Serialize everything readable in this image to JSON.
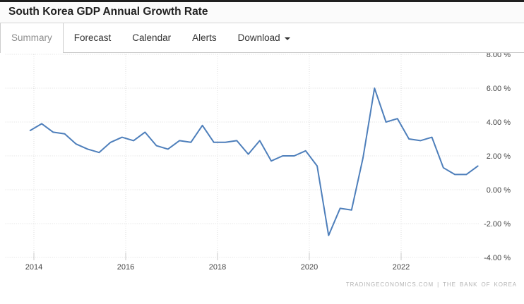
{
  "header": {
    "title": "South Korea GDP Annual Growth Rate"
  },
  "tabs": [
    {
      "label": "Summary",
      "active": true
    },
    {
      "label": "Forecast",
      "active": false
    },
    {
      "label": "Calendar",
      "active": false
    },
    {
      "label": "Alerts",
      "active": false
    },
    {
      "label": "Download",
      "active": false,
      "has_caret": true
    }
  ],
  "footer": {
    "attribution": "TRADINGECONOMICS.COM  |  THE BANK OF KOREA"
  },
  "colors": {
    "line": "#4e7fbb",
    "gridline": "#dcdcdc",
    "tick": "#c8c8c8",
    "axis_text": "#444444"
  },
  "chart_data": {
    "type": "line",
    "title": "South Korea GDP Annual Growth Rate",
    "unit": "%",
    "grid": "dotted",
    "legend": "none",
    "xlim": [
      2013.38,
      2023.69
    ],
    "ylim": [
      -4,
      8
    ],
    "x_ticks": [
      2014,
      2016,
      2018,
      2020,
      2022
    ],
    "x_tick_labels": [
      "2014",
      "2016",
      "2018",
      "2020",
      "2022"
    ],
    "y_ticks": [
      8,
      6,
      4,
      2,
      0,
      -2,
      -4
    ],
    "y_tick_labels": [
      "8.00 %",
      "6.00 %",
      "4.00 %",
      "2.00 %",
      "0.00 %",
      "-2.00 %",
      "-4.00 %"
    ],
    "periods": [
      "2013-Q4",
      "2014-Q1",
      "2014-Q2",
      "2014-Q3",
      "2014-Q4",
      "2015-Q1",
      "2015-Q2",
      "2015-Q3",
      "2015-Q4",
      "2016-Q1",
      "2016-Q2",
      "2016-Q3",
      "2016-Q4",
      "2017-Q1",
      "2017-Q2",
      "2017-Q3",
      "2017-Q4",
      "2018-Q1",
      "2018-Q2",
      "2018-Q3",
      "2018-Q4",
      "2019-Q1",
      "2019-Q2",
      "2019-Q3",
      "2019-Q4",
      "2020-Q1",
      "2020-Q2",
      "2020-Q3",
      "2020-Q4",
      "2021-Q1",
      "2021-Q2",
      "2021-Q3",
      "2021-Q4",
      "2022-Q1",
      "2022-Q2",
      "2022-Q3",
      "2022-Q4",
      "2023-Q1",
      "2023-Q2",
      "2023-Q3"
    ],
    "series": [
      {
        "name": "GDP Annual Growth Rate (%)",
        "color": "#4e7fbb",
        "x": [
          2013.92,
          2014.17,
          2014.42,
          2014.67,
          2014.92,
          2015.17,
          2015.42,
          2015.67,
          2015.92,
          2016.17,
          2016.42,
          2016.67,
          2016.92,
          2017.17,
          2017.42,
          2017.67,
          2017.92,
          2018.17,
          2018.42,
          2018.67,
          2018.92,
          2019.17,
          2019.42,
          2019.67,
          2019.92,
          2020.17,
          2020.42,
          2020.67,
          2020.92,
          2021.17,
          2021.42,
          2021.67,
          2021.92,
          2022.17,
          2022.42,
          2022.67,
          2022.92,
          2023.17,
          2023.42,
          2023.67
        ],
        "values": [
          3.5,
          3.9,
          3.4,
          3.3,
          2.7,
          2.4,
          2.2,
          2.8,
          3.1,
          2.9,
          3.4,
          2.6,
          2.4,
          2.9,
          2.8,
          3.8,
          2.8,
          2.8,
          2.9,
          2.1,
          2.9,
          1.7,
          2.0,
          2.0,
          2.3,
          1.4,
          -2.7,
          -1.1,
          -1.2,
          1.9,
          6.0,
          4.0,
          4.2,
          3.0,
          2.9,
          3.1,
          1.3,
          0.9,
          0.9,
          1.4
        ]
      }
    ]
  }
}
